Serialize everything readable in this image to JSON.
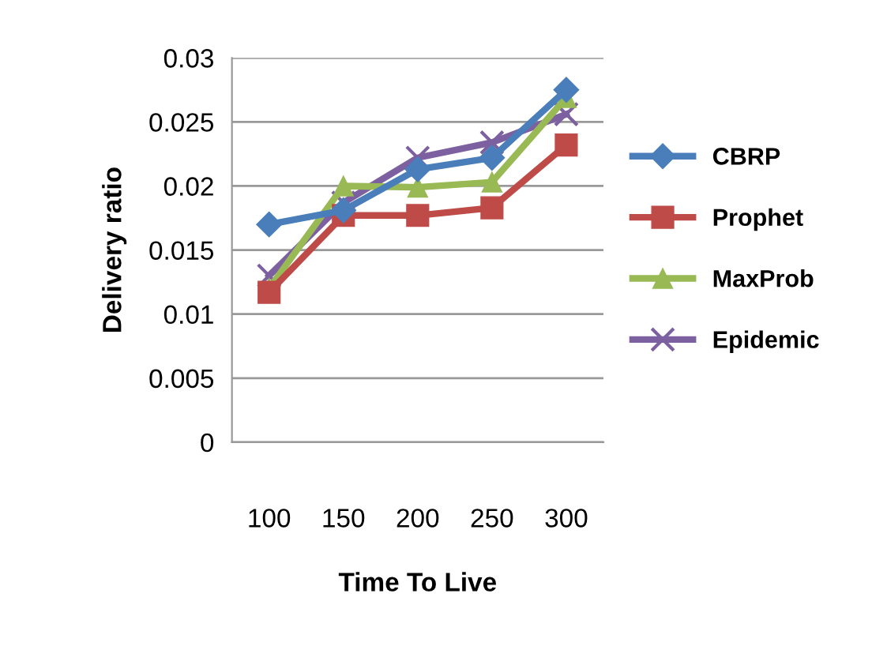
{
  "chart_data": {
    "type": "line",
    "xlabel": "Time To Live",
    "ylabel": "Delivery ratio",
    "categories": [
      "100",
      "150",
      "200",
      "250",
      "300"
    ],
    "ylim": [
      0,
      0.03
    ],
    "yticks": [
      0,
      0.005,
      0.01,
      0.015,
      0.02,
      0.025,
      0.03
    ],
    "grid": "y",
    "legend": "right",
    "line_style": "solid",
    "series": [
      {
        "name": "CBRP",
        "color": "#4a7ebb",
        "marker": "diamond",
        "values": [
          0.017,
          0.0181,
          0.0213,
          0.0222,
          0.0275
        ]
      },
      {
        "name": "Prophet",
        "color": "#be4b48",
        "marker": "square",
        "values": [
          0.0117,
          0.0177,
          0.0177,
          0.0183,
          0.0232
        ]
      },
      {
        "name": "MaxProb",
        "color": "#98b954",
        "marker": "triangle",
        "values": [
          0.012,
          0.02,
          0.0199,
          0.0203,
          0.0269
        ]
      },
      {
        "name": "Epidemic",
        "color": "#7d60a0",
        "marker": "cross",
        "values": [
          0.013,
          0.0187,
          0.0222,
          0.0234,
          0.0256
        ]
      }
    ]
  }
}
